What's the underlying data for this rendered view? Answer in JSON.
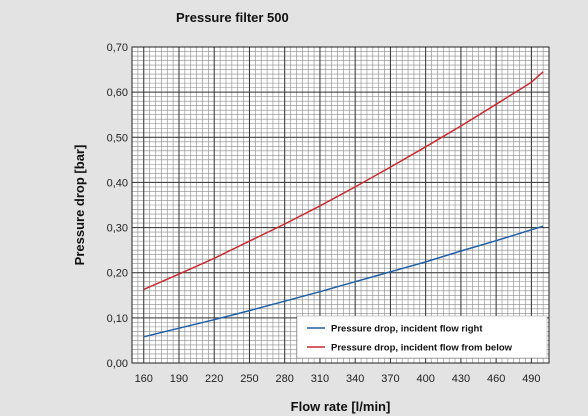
{
  "chart_data": {
    "type": "line",
    "title": "Pressure filter 500",
    "xlabel": "Flow rate [l/min]",
    "ylabel": "Pressure drop [bar]",
    "xlim": [
      150,
      505
    ],
    "ylim": [
      0,
      0.7
    ],
    "x_ticks": [
      "160",
      "190",
      "220",
      "250",
      "280",
      "310",
      "340",
      "370",
      "400",
      "430",
      "460",
      "490"
    ],
    "x_tick_values": [
      160,
      190,
      220,
      250,
      280,
      310,
      340,
      370,
      400,
      430,
      460,
      490
    ],
    "y_ticks": [
      "0,00",
      "0,10",
      "0,20",
      "0,30",
      "0,40",
      "0,50",
      "0,60",
      "0,70"
    ],
    "y_tick_values": [
      0,
      0.1,
      0.2,
      0.3,
      0.4,
      0.5,
      0.6,
      0.7
    ],
    "grid": true,
    "legend_position": "bottom-right",
    "x": [
      160,
      190,
      220,
      250,
      280,
      310,
      340,
      370,
      400,
      430,
      460,
      490,
      500
    ],
    "series": [
      {
        "name": "Pressure drop, incident flow right",
        "color": "#1f5fa8",
        "values": [
          0.058,
          0.077,
          0.096,
          0.116,
          0.137,
          0.158,
          0.18,
          0.202,
          0.224,
          0.248,
          0.271,
          0.295,
          0.303
        ]
      },
      {
        "name": "Pressure drop, incident flow from below",
        "color": "#cc2a30",
        "values": [
          0.163,
          0.197,
          0.232,
          0.27,
          0.308,
          0.348,
          0.39,
          0.434,
          0.479,
          0.525,
          0.573,
          0.622,
          0.645
        ]
      }
    ]
  }
}
